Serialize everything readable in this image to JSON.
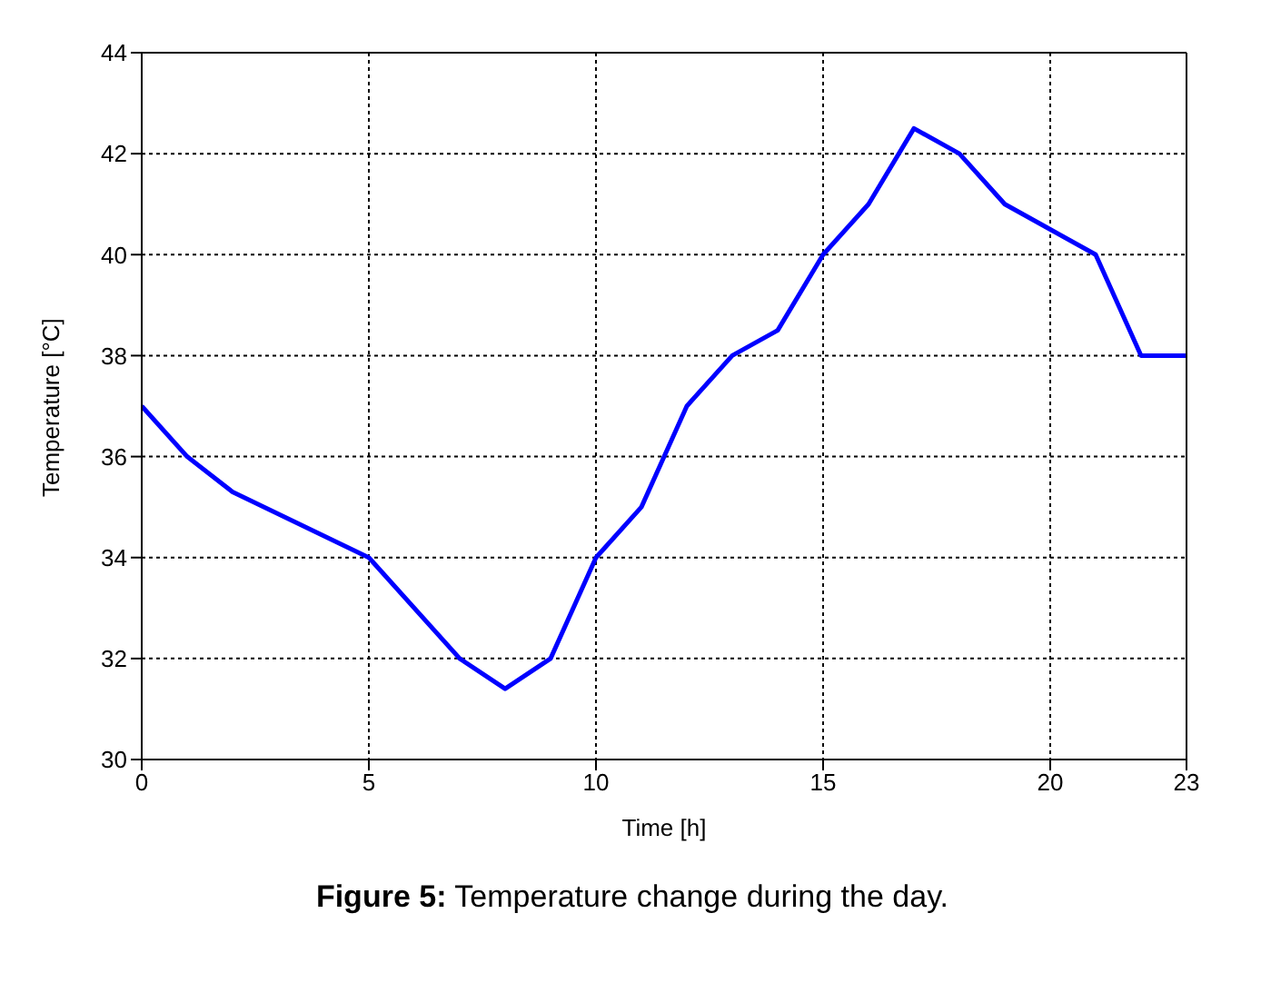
{
  "chart_data": {
    "type": "line",
    "xlabel": "Time [h]",
    "ylabel": "Temperature [°C]",
    "x": [
      0,
      1,
      2,
      5,
      7,
      8,
      9,
      10,
      11,
      12,
      13,
      14,
      15,
      16,
      17,
      18,
      19,
      20,
      21,
      22,
      23
    ],
    "series": [
      {
        "color": "#0000ff",
        "values": [
          37,
          36,
          35.3,
          34,
          32,
          31.4,
          32,
          34,
          35,
          37,
          38,
          38.5,
          40,
          41,
          42.5,
          42,
          41,
          40.5,
          40,
          38,
          38
        ]
      }
    ],
    "xlim": [
      0,
      23
    ],
    "xticks": [
      0,
      5,
      10,
      15,
      20,
      23
    ],
    "ylim": [
      30,
      44
    ],
    "yticks": [
      30,
      32,
      34,
      36,
      38,
      40,
      42,
      44
    ],
    "grid": true,
    "marker": "none",
    "line_style": "solid",
    "annotations": [
      "Figure 5: Temperature change during the day."
    ]
  }
}
